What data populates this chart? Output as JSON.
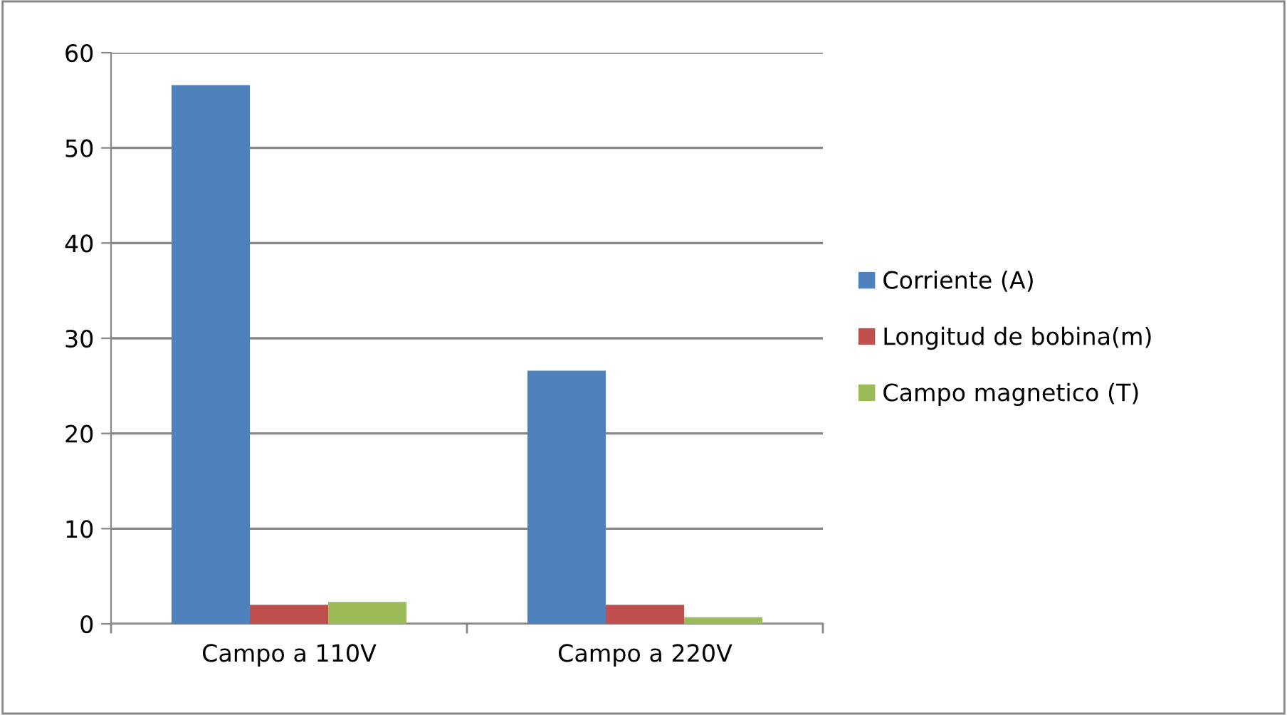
{
  "chart_data": {
    "type": "bar",
    "categories": [
      "Campo a 110V",
      "Campo a 220V"
    ],
    "series": [
      {
        "name": "Corriente (A)",
        "color": "#4f81bd",
        "values": [
          56.6,
          26.6
        ]
      },
      {
        "name": "Longitud de bobina(m)",
        "color": "#c0504d",
        "values": [
          2.0,
          2.0
        ]
      },
      {
        "name": "Campo magnetico (T)",
        "color": "#9bbb59",
        "values": [
          2.3,
          0.7
        ]
      }
    ],
    "ylim": [
      0,
      60
    ],
    "yticks": [
      0,
      10,
      20,
      30,
      40,
      50,
      60
    ],
    "grid": "y",
    "legend": "right"
  }
}
